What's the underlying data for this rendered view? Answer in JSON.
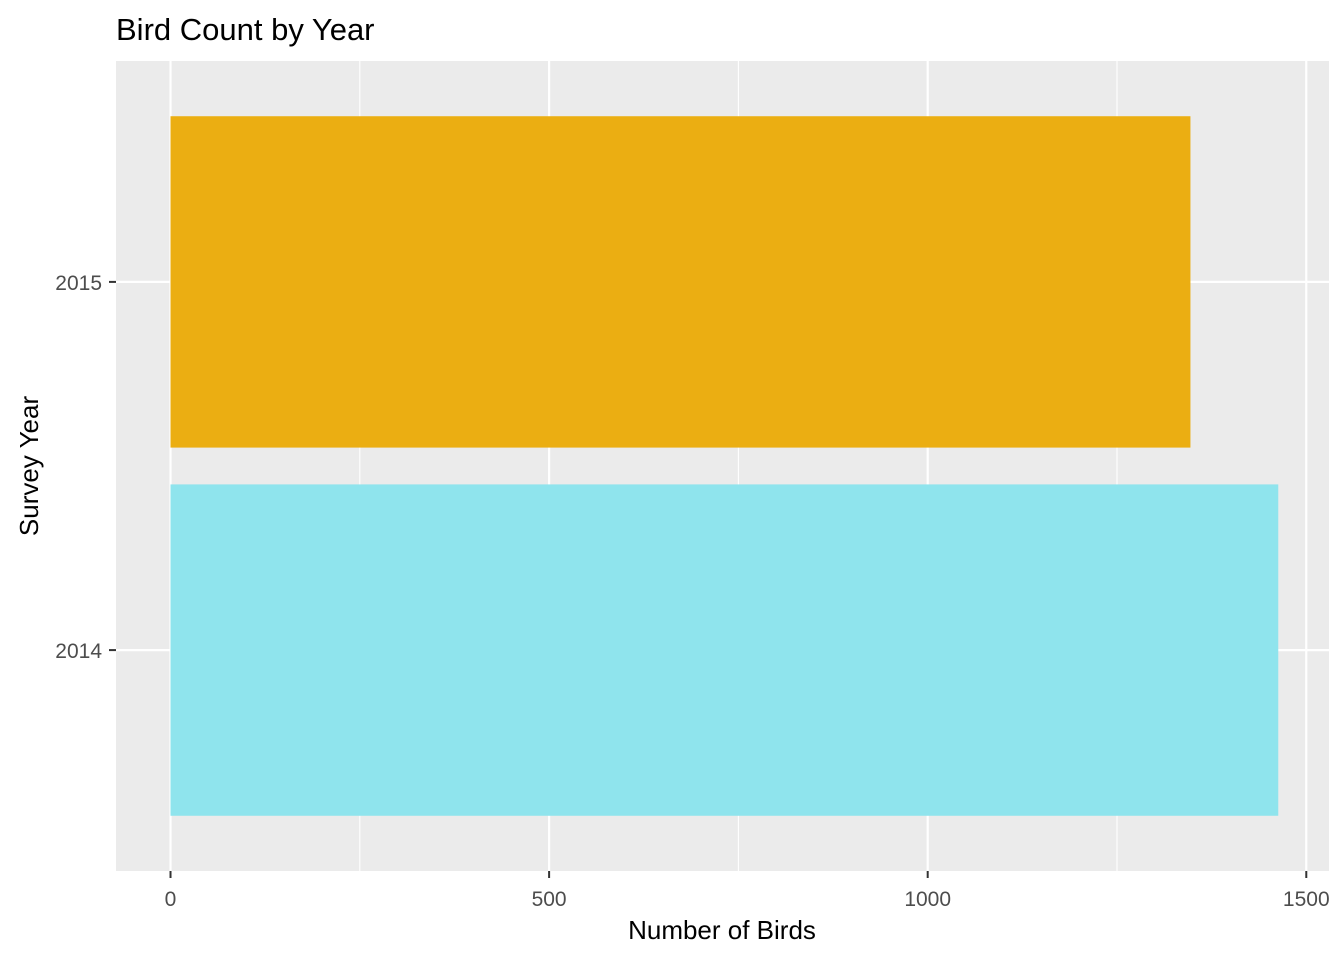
{
  "chart_data": {
    "type": "bar",
    "orientation": "horizontal",
    "title": "Bird Count by Year",
    "xlabel": "Number of Birds",
    "ylabel": "Survey Year",
    "categories": [
      "2014",
      "2015"
    ],
    "values": [
      1463,
      1347
    ],
    "bar_colors": [
      "#8FE4ED",
      "#EBAE12"
    ],
    "xlim": [
      -72,
      1530
    ],
    "xticks": [
      0,
      500,
      1000,
      1500
    ],
    "xtick_labels": [
      "0",
      "500",
      "1000",
      "1500"
    ],
    "grid": true,
    "panel_background": "#EBEBEB",
    "gridline_color": "#FFFFFF",
    "legend": "none"
  }
}
